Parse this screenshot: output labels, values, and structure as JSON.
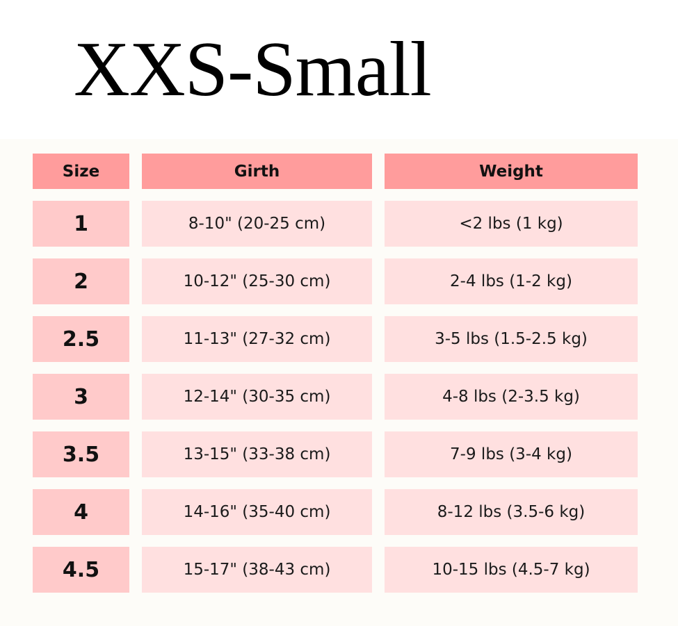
{
  "title": "XXS-Small",
  "colors": {
    "header": "#ff9c9c",
    "size_cell": "#ffcaca",
    "data_cell": "#ffe0e0",
    "background": "#fdfcf8"
  },
  "table": {
    "headers": [
      "Size",
      "Girth",
      "Weight"
    ],
    "rows": [
      [
        "1",
        "8-10\" (20-25 cm)",
        "<2 lbs (1 kg)"
      ],
      [
        "2",
        "10-12\" (25-30 cm)",
        "2-4 lbs (1-2 kg)"
      ],
      [
        "2.5",
        "11-13\" (27-32 cm)",
        "3-5 lbs (1.5-2.5 kg)"
      ],
      [
        "3",
        "12-14\" (30-35 cm)",
        "4-8 lbs (2-3.5 kg)"
      ],
      [
        "3.5",
        "13-15\" (33-38 cm)",
        "7-9 lbs (3-4 kg)"
      ],
      [
        "4",
        "14-16\" (35-40 cm)",
        "8-12 lbs (3.5-6 kg)"
      ],
      [
        "4.5",
        "15-17\" (38-43 cm)",
        "10-15 lbs (4.5-7 kg)"
      ]
    ]
  }
}
